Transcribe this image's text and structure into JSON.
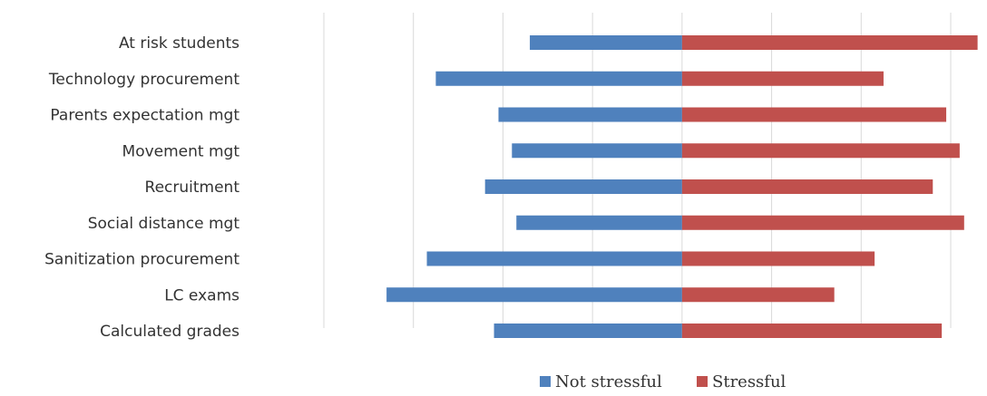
{
  "chart_data": {
    "type": "bar",
    "orientation": "horizontal",
    "stacked": "diverging",
    "categories": [
      "At risk students",
      "Technology procurement",
      "Parents expectation mgt",
      "Movement mgt",
      "Recruitment",
      "Social distance mgt",
      "Sanitization procurement",
      "LC exams",
      "Calculated grades"
    ],
    "series": [
      {
        "name": "Not stressful",
        "color": "#4f81bd",
        "values": [
          -17,
          -27.5,
          -20.5,
          -19,
          -22,
          -18.5,
          -28.5,
          -33,
          -21
        ]
      },
      {
        "name": "Stressful",
        "color": "#c0504d",
        "values": [
          33,
          22.5,
          29.5,
          31,
          28,
          31.5,
          21.5,
          17,
          29
        ]
      }
    ],
    "xlim": [
      -40,
      30
    ],
    "grid": true,
    "legend_position": "bottom",
    "title": "",
    "xlabel": "",
    "ylabel": ""
  }
}
